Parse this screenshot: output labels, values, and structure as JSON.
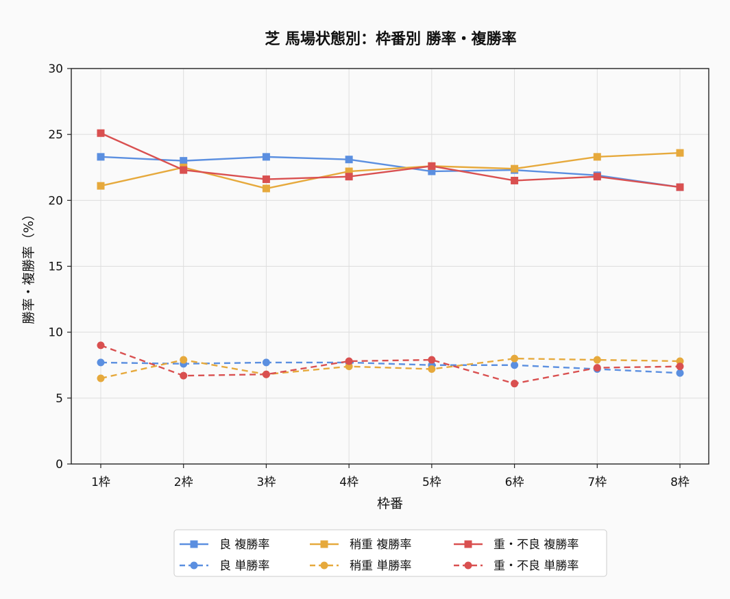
{
  "chart_data": {
    "type": "line",
    "title": "芝 馬場状態別：枠番別 勝率・複勝率",
    "xlabel": "枠番",
    "ylabel": "勝率・複勝率（%）",
    "categories": [
      "1枠",
      "2枠",
      "3枠",
      "4枠",
      "5枠",
      "6枠",
      "7枠",
      "8枠"
    ],
    "ylim": [
      0,
      30
    ],
    "yticks": [
      0,
      5,
      10,
      15,
      20,
      25,
      30
    ],
    "grid": true,
    "legend_position": "bottom-center",
    "series": [
      {
        "name": "良 複勝率",
        "color": "#5b8fe0",
        "marker": "square",
        "dash": "solid",
        "values": [
          23.3,
          23.0,
          23.3,
          23.1,
          22.2,
          22.3,
          21.9,
          21.0
        ]
      },
      {
        "name": "良 単勝率",
        "color": "#5b8fe0",
        "marker": "circle",
        "dash": "dashed",
        "values": [
          7.7,
          7.6,
          7.7,
          7.7,
          7.5,
          7.5,
          7.2,
          6.9
        ]
      },
      {
        "name": "稍重 複勝率",
        "color": "#e6a93c",
        "marker": "square",
        "dash": "solid",
        "values": [
          21.1,
          22.5,
          20.9,
          22.2,
          22.6,
          22.4,
          23.3,
          23.6
        ]
      },
      {
        "name": "稍重 単勝率",
        "color": "#e6a93c",
        "marker": "circle",
        "dash": "dashed",
        "values": [
          6.5,
          7.9,
          6.8,
          7.4,
          7.2,
          8.0,
          7.9,
          7.8
        ]
      },
      {
        "name": "重・不良 複勝率",
        "color": "#d95050",
        "marker": "square",
        "dash": "solid",
        "values": [
          25.1,
          22.3,
          21.6,
          21.8,
          22.6,
          21.5,
          21.8,
          21.0
        ]
      },
      {
        "name": "重・不良 単勝率",
        "color": "#d95050",
        "marker": "circle",
        "dash": "dashed",
        "values": [
          9.0,
          6.7,
          6.8,
          7.8,
          7.9,
          6.1,
          7.3,
          7.4
        ]
      }
    ]
  }
}
